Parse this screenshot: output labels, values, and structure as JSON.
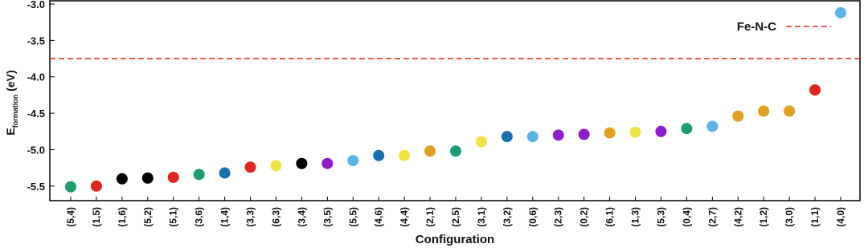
{
  "chart_data": {
    "type": "scatter",
    "x_label": "Configuration",
    "y_label": {
      "main": "E",
      "sub": "formation",
      "unit": "(eV)"
    },
    "categories": [
      "(5,4)",
      "(1,5)",
      "(1,6)",
      "(5,2)",
      "(5,1)",
      "(3,6)",
      "(1,4)",
      "(3,3)",
      "(6,3)",
      "(3,4)",
      "(3,5)",
      "(5,5)",
      "(4,6)",
      "(4,4)",
      "(2,1)",
      "(2,5)",
      "(3,1)",
      "(3,2)",
      "(0,6)",
      "(2,3)",
      "(0,2)",
      "(6,1)",
      "(1,3)",
      "(5,3)",
      "(0,4)",
      "(2,7)",
      "(4,2)",
      "(1,2)",
      "(3,0)",
      "(1,1)",
      "(4,0)"
    ],
    "values": [
      -5.51,
      -5.5,
      -5.4,
      -5.39,
      -5.38,
      -5.34,
      -5.32,
      -5.24,
      -5.22,
      -5.19,
      -5.19,
      -5.15,
      -5.08,
      -5.08,
      -5.02,
      -5.02,
      -4.89,
      -4.82,
      -4.82,
      -4.8,
      -4.79,
      -4.77,
      -4.76,
      -4.75,
      -4.71,
      -4.68,
      -4.54,
      -4.47,
      -4.47,
      -4.18,
      -3.12
    ],
    "colors": [
      "#1a9e6e",
      "#e0261f",
      "#000000",
      "#000000",
      "#e0261f",
      "#1a9e6e",
      "#1a6fad",
      "#e0261f",
      "#f0e442",
      "#000000",
      "#8e1ec9",
      "#5ab4e5",
      "#1a6fad",
      "#f0e442",
      "#e0a020",
      "#1a9e6e",
      "#f0e442",
      "#1a6fad",
      "#5ab4e5",
      "#8e1ec9",
      "#8e1ec9",
      "#e0a020",
      "#f0e442",
      "#8e1ec9",
      "#1a9e6e",
      "#5ab4e5",
      "#e0a020",
      "#e0a020",
      "#e0a020",
      "#e0261f",
      "#5ab4e5"
    ],
    "reference_line": {
      "name": "Fe-N-C",
      "value": -3.75,
      "color": "#e0261f"
    },
    "legend_position": "upper right",
    "ylim": [
      -5.7,
      -3.0
    ],
    "yticks": [
      {
        "value": -3,
        "label": "-3.0"
      },
      -3.5,
      {
        "value": -4,
        "label": "-4.0"
      },
      -4.5,
      {
        "value": -5,
        "label": "-5.0"
      },
      -5.5
    ]
  }
}
